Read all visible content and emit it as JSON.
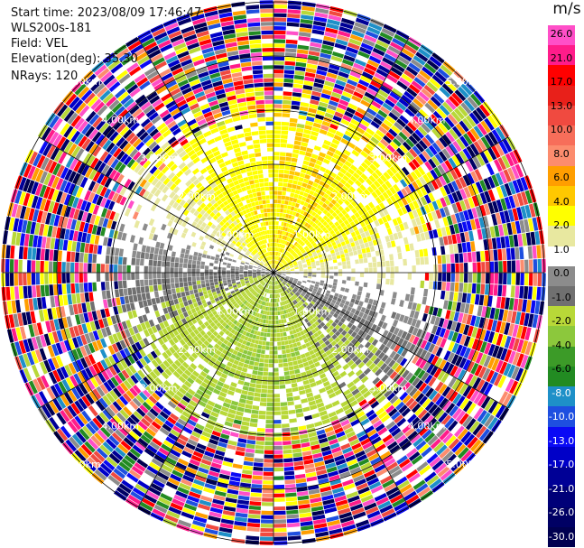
{
  "header": {
    "start_time": "Start time: 2023/08/09 17:46:47",
    "instrument": "WLS200s-181",
    "field": "Field: VEL",
    "elevation": "Elevation(deg): 35.30",
    "nrays": "NRays: 120"
  },
  "colorbar": {
    "unit": "m/s",
    "colors": [
      "#ff4fc8",
      "#ff1c8a",
      "#ff0000",
      "#e8201a",
      "#f04a40",
      "#f76e5a",
      "#fc8c6e",
      "#ff9e00",
      "#ffc800",
      "#ffff00",
      "#e8e8a0",
      "#ffffff",
      "#8c8c8c",
      "#707070",
      "#b8d838",
      "#8cc83c",
      "#3c9b28",
      "#228b22",
      "#1e90c8",
      "#1e4fe0",
      "#0a0af5",
      "#0000c8",
      "#000096",
      "#000078",
      "#000064",
      "#000050"
    ],
    "labels": [
      "26.0",
      "21.0",
      "17.0",
      "13.0",
      "10.0",
      "8.0",
      "6.0",
      "4.0",
      "2.0",
      "1.0",
      "0.0",
      "-1.0",
      "-2.0",
      "-4.0",
      "-6.0",
      "-8.0",
      "-10.0",
      "-13.0",
      "-17.0",
      "-21.0",
      "-26.0",
      "-30.0"
    ],
    "label_colors": [
      "#000000",
      "#000000",
      "#000000",
      "#000000",
      "#000000",
      "#000000",
      "#000000",
      "#000000",
      "#000000",
      "#000000",
      "#000000",
      "#000000",
      "#000000",
      "#000000",
      "#000000",
      "#ffffff",
      "#ffffff",
      "#ffffff",
      "#ffffff",
      "#ffffff",
      "#ffffff",
      "#ffffff"
    ]
  },
  "range_labels": [
    "1.00km",
    "2.00km",
    "3.00km",
    "4.00km",
    "5.00km"
  ],
  "chart_data": {
    "type": "heatmap",
    "projection": "polar PPI",
    "field": "VEL",
    "units": "m/s",
    "nrays": 120,
    "range_rings_km": [
      1,
      2,
      3,
      4,
      5
    ],
    "spoke_count": 12,
    "value_range": [
      -30,
      30
    ],
    "colorbar_ticks": [
      26.0,
      21.0,
      17.0,
      13.0,
      10.0,
      8.0,
      6.0,
      4.0,
      2.0,
      1.0,
      0.0,
      -1.0,
      -2.0,
      -4.0,
      -6.0,
      -8.0,
      -10.0,
      -13.0,
      -17.0,
      -21.0,
      -26.0,
      -30.0
    ]
  }
}
